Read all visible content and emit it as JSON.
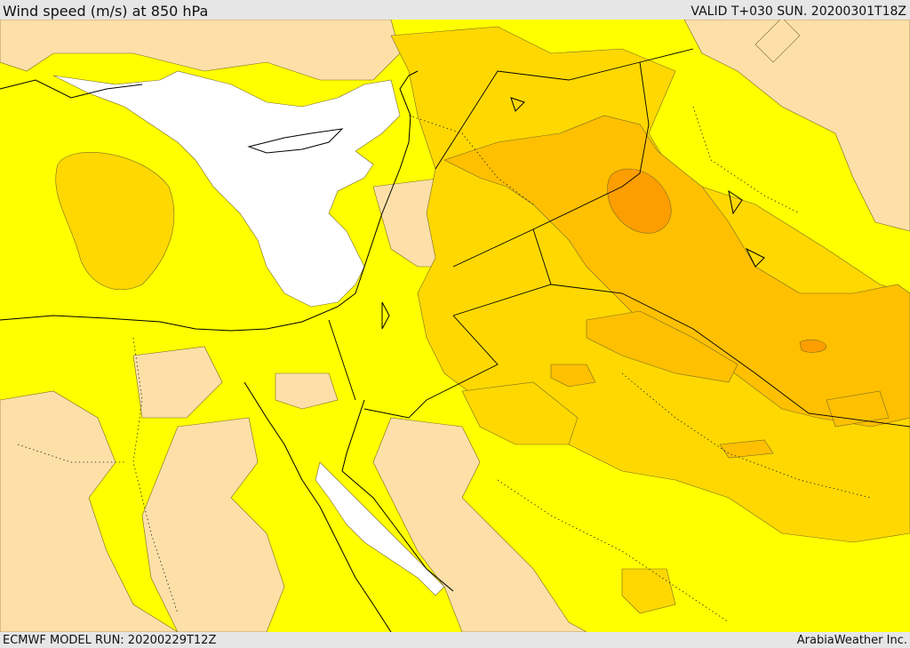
{
  "header": {
    "title": "Wind speed (m/s) at 850 hPa",
    "valid_time": "VALID T+030 SUN. 20200301T18Z"
  },
  "footer": {
    "model_run": "ECMWF MODEL RUN: 20200229T12Z",
    "credit": "ArabiaWeather Inc."
  },
  "colors": {
    "background": "#ffff00",
    "calm": "#ffffff",
    "light": "#fde0a8",
    "moderate": "#fed800",
    "strong": "#fec000",
    "strongest": "#fd9e00",
    "coast": "#000000",
    "contour": "#7a6a2a"
  }
}
